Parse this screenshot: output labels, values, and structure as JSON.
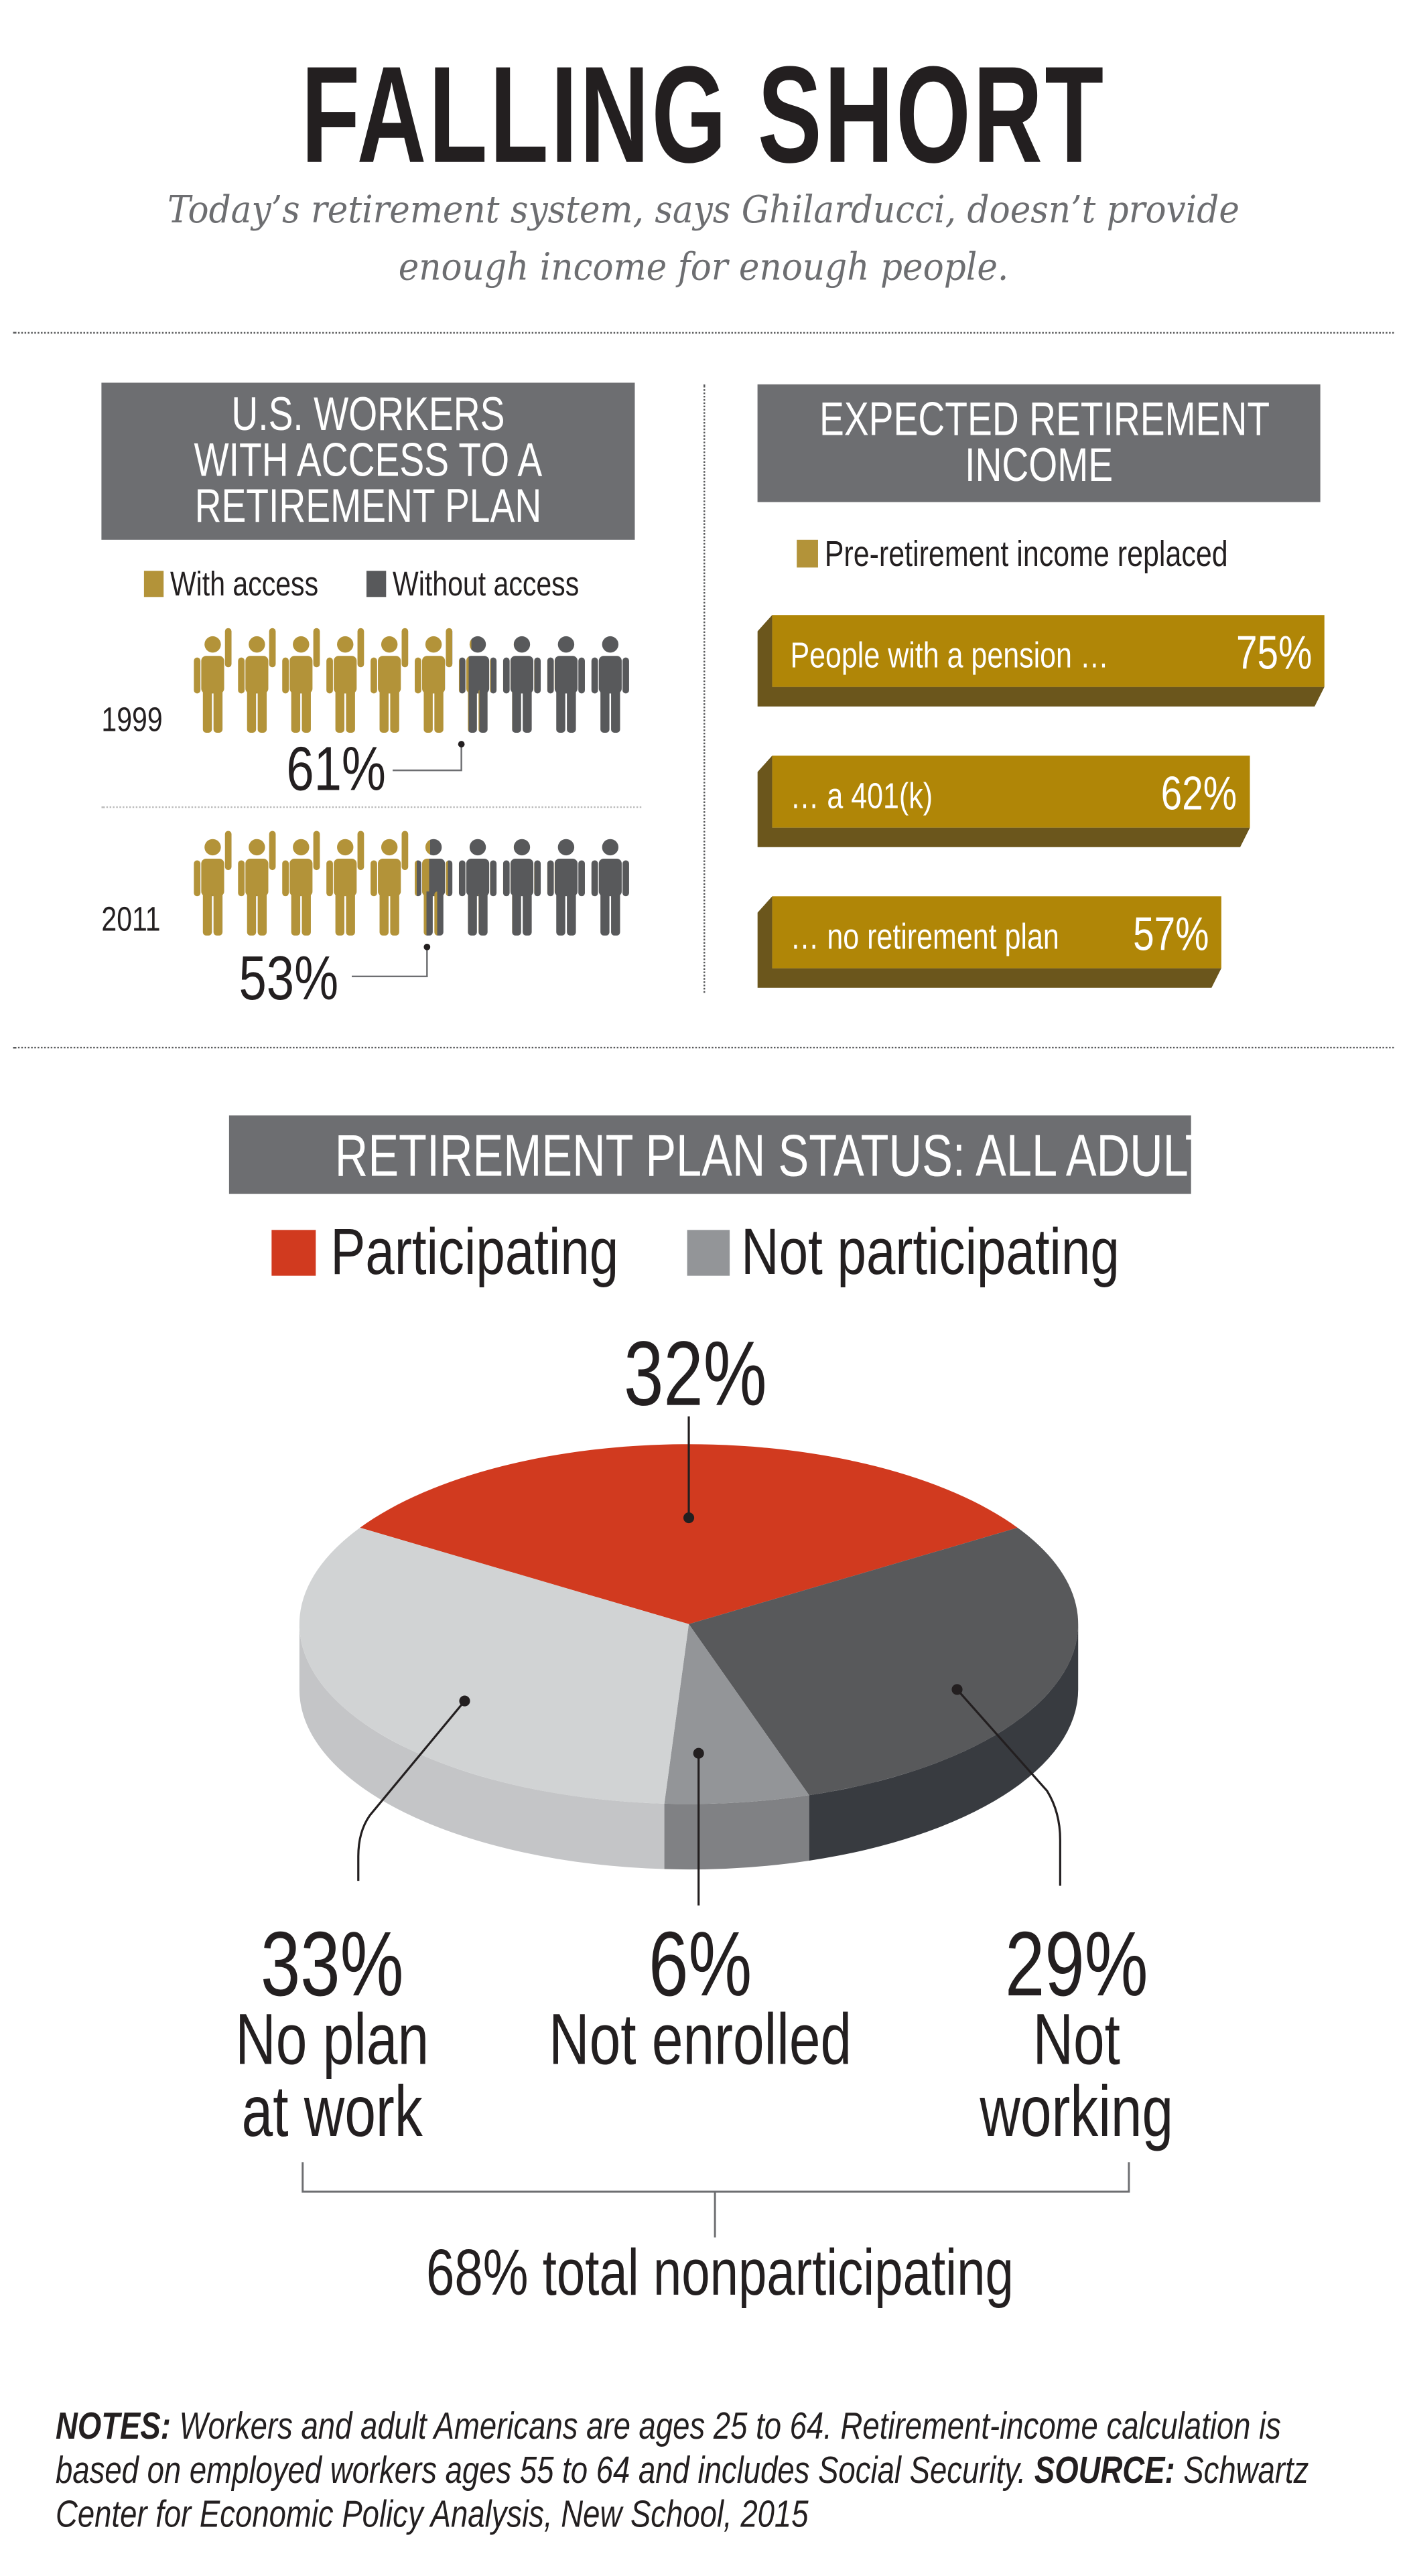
{
  "title": "FALLING SHORT",
  "subtitle": [
    "Today’s retirement system, says Ghilarducci, doesn’t provide",
    "enough income for enough people."
  ],
  "colors": {
    "gold": "#b39339",
    "dark": "#58595b",
    "bar_gold": "#b08607",
    "bar_shadow": "#6b561c",
    "header_box": "#6d6e71",
    "participating": "#d13a1f",
    "not_participating": "#939598"
  },
  "chart_data": [
    {
      "type": "pictogram",
      "title": [
        "U.S. WORKERS",
        "WITH ACCESS TO A",
        "RETIREMENT PLAN"
      ],
      "legend": [
        {
          "label": "With access",
          "color": "#b39339"
        },
        {
          "label": "Without access",
          "color": "#58595b"
        }
      ],
      "categories": [
        "1999",
        "2011"
      ],
      "values": [
        61,
        53
      ],
      "labels": [
        "61%",
        "53%"
      ],
      "icons_per_row": 10,
      "icon": "person-icon"
    },
    {
      "type": "bar",
      "orientation": "horizontal",
      "title": [
        "EXPECTED RETIREMENT",
        "INCOME"
      ],
      "legend": [
        {
          "label": "Pre-retirement income replaced",
          "color": "#b39339"
        }
      ],
      "categories": [
        "People with a pension …",
        "… a 401(k)",
        "… no retirement plan"
      ],
      "values": [
        75,
        62,
        57
      ],
      "labels": [
        "75%",
        "62%",
        "57%"
      ]
    },
    {
      "type": "pie",
      "title": "RETIREMENT PLAN STATUS: ALL ADULTS",
      "legend": [
        {
          "label": "Participating",
          "color": "#d13a1f"
        },
        {
          "label": "Not participating",
          "color": "#939598"
        }
      ],
      "slices": [
        {
          "label": "",
          "value": 32,
          "value_label": "32%",
          "color": "#d13a1f",
          "side": "#a82c17"
        },
        {
          "label": "Not working",
          "lines": [
            "Not",
            "working"
          ],
          "value": 29,
          "value_label": "29%",
          "color": "#58595b",
          "side": "#383b40"
        },
        {
          "label": "Not enrolled",
          "lines": [
            "Not enrolled"
          ],
          "value": 6,
          "value_label": "6%",
          "color": "#939598",
          "side": "#808184"
        },
        {
          "label": "No plan at work",
          "lines": [
            "No plan",
            "at work"
          ],
          "value": 33,
          "value_label": "33%",
          "color": "#d1d3d4",
          "side": "#c4c5c7"
        }
      ],
      "bracket_label": "68% total nonparticipating"
    }
  ],
  "notes": {
    "notes_label": "NOTES:",
    "notes_text": " Workers and adult Americans are ages 25 to 64. Retirement-income calculation is based on employed workers ages 55 to 64 and includes Social Security. ",
    "source_label": "SOURCE:",
    "source_text": " Schwartz Center for Economic Policy Analysis, New School, 2015"
  }
}
